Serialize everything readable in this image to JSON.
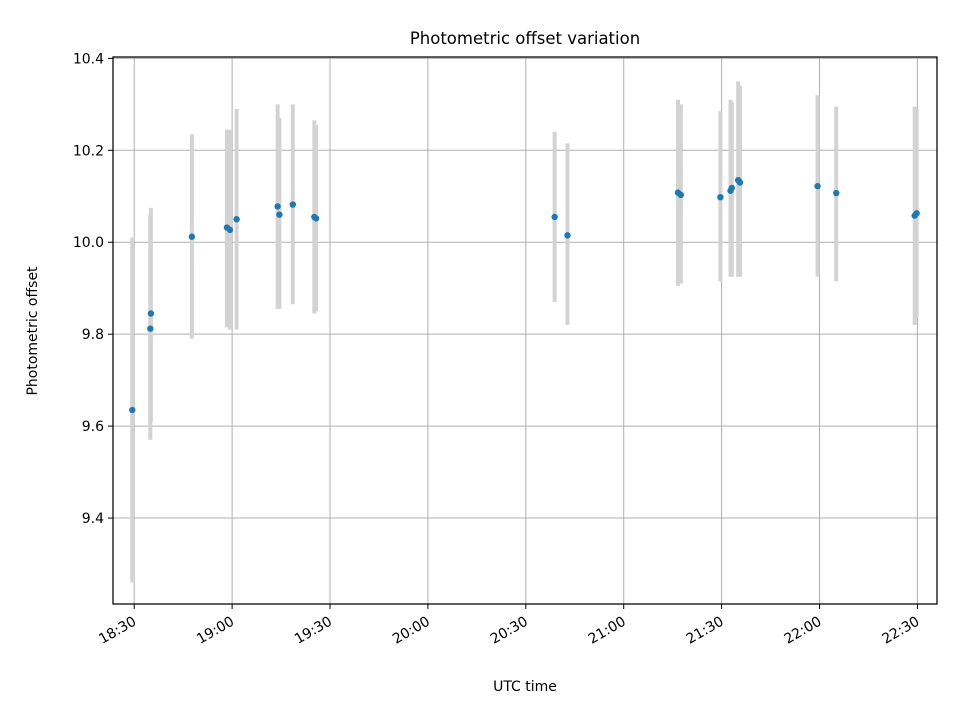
{
  "chart_data": {
    "type": "scatter",
    "title": "Photometric offset variation",
    "xlabel": "UTC time",
    "ylabel": "Photometric offset",
    "x_unit": "UTC time (HH:MM)",
    "xlim": [
      "18:23:30",
      "22:36:00"
    ],
    "ylim": [
      9.213,
      10.403
    ],
    "x_ticks": [
      "18:30",
      "19:00",
      "19:30",
      "20:00",
      "20:30",
      "21:00",
      "21:30",
      "22:00",
      "22:30"
    ],
    "y_ticks": [
      9.4,
      9.6,
      9.8,
      10.0,
      10.2,
      10.4
    ],
    "y_tick_labels": [
      "9.4",
      "9.6",
      "9.8",
      "10.0",
      "10.2",
      "10.4"
    ],
    "grid": true,
    "colors": {
      "marker": "#1f77b4",
      "errorbar": "#d3d3d3",
      "grid": "#b0b0b0"
    },
    "series": [
      {
        "points": [
          {
            "x": "18:29:24",
            "y": 9.635,
            "ylow": 9.26,
            "yhigh": 10.01
          },
          {
            "x": "18:34:56",
            "y": 9.812,
            "ylow": 9.57,
            "yhigh": 10.06
          },
          {
            "x": "18:35:07",
            "y": 9.845,
            "ylow": 9.61,
            "yhigh": 10.075
          },
          {
            "x": "18:47:40",
            "y": 10.012,
            "ylow": 9.79,
            "yhigh": 10.235
          },
          {
            "x": "18:58:25",
            "y": 10.032,
            "ylow": 9.815,
            "yhigh": 10.245
          },
          {
            "x": "18:59:21",
            "y": 10.027,
            "ylow": 9.81,
            "yhigh": 10.245
          },
          {
            "x": "19:01:23",
            "y": 10.05,
            "ylow": 9.81,
            "yhigh": 10.29
          },
          {
            "x": "19:13:57",
            "y": 10.078,
            "ylow": 9.855,
            "yhigh": 10.3
          },
          {
            "x": "19:14:30",
            "y": 10.06,
            "ylow": 9.855,
            "yhigh": 10.27
          },
          {
            "x": "19:18:36",
            "y": 10.082,
            "ylow": 9.865,
            "yhigh": 10.3
          },
          {
            "x": "19:25:12",
            "y": 10.055,
            "ylow": 9.845,
            "yhigh": 10.265
          },
          {
            "x": "19:25:44",
            "y": 10.052,
            "ylow": 9.85,
            "yhigh": 10.255
          },
          {
            "x": "20:38:50",
            "y": 10.055,
            "ylow": 9.87,
            "yhigh": 10.24
          },
          {
            "x": "20:42:46",
            "y": 10.015,
            "ylow": 9.82,
            "yhigh": 10.215
          },
          {
            "x": "21:16:38",
            "y": 10.108,
            "ylow": 9.905,
            "yhigh": 10.31
          },
          {
            "x": "21:17:30",
            "y": 10.103,
            "ylow": 9.91,
            "yhigh": 10.3
          },
          {
            "x": "21:29:37",
            "y": 10.098,
            "ylow": 9.915,
            "yhigh": 10.285
          },
          {
            "x": "21:32:44",
            "y": 10.112,
            "ylow": 9.925,
            "yhigh": 10.31
          },
          {
            "x": "21:33:07",
            "y": 10.118,
            "ylow": 9.925,
            "yhigh": 10.305
          },
          {
            "x": "21:35:04",
            "y": 10.135,
            "ylow": 9.925,
            "yhigh": 10.35
          },
          {
            "x": "21:35:38",
            "y": 10.13,
            "ylow": 9.925,
            "yhigh": 10.34
          },
          {
            "x": "21:59:24",
            "y": 10.122,
            "ylow": 9.925,
            "yhigh": 10.32
          },
          {
            "x": "22:05:07",
            "y": 10.107,
            "ylow": 9.915,
            "yhigh": 10.295
          },
          {
            "x": "22:29:10",
            "y": 10.058,
            "ylow": 9.82,
            "yhigh": 10.295
          },
          {
            "x": "22:29:46",
            "y": 10.063,
            "ylow": 9.835,
            "yhigh": 10.29
          }
        ]
      }
    ]
  }
}
